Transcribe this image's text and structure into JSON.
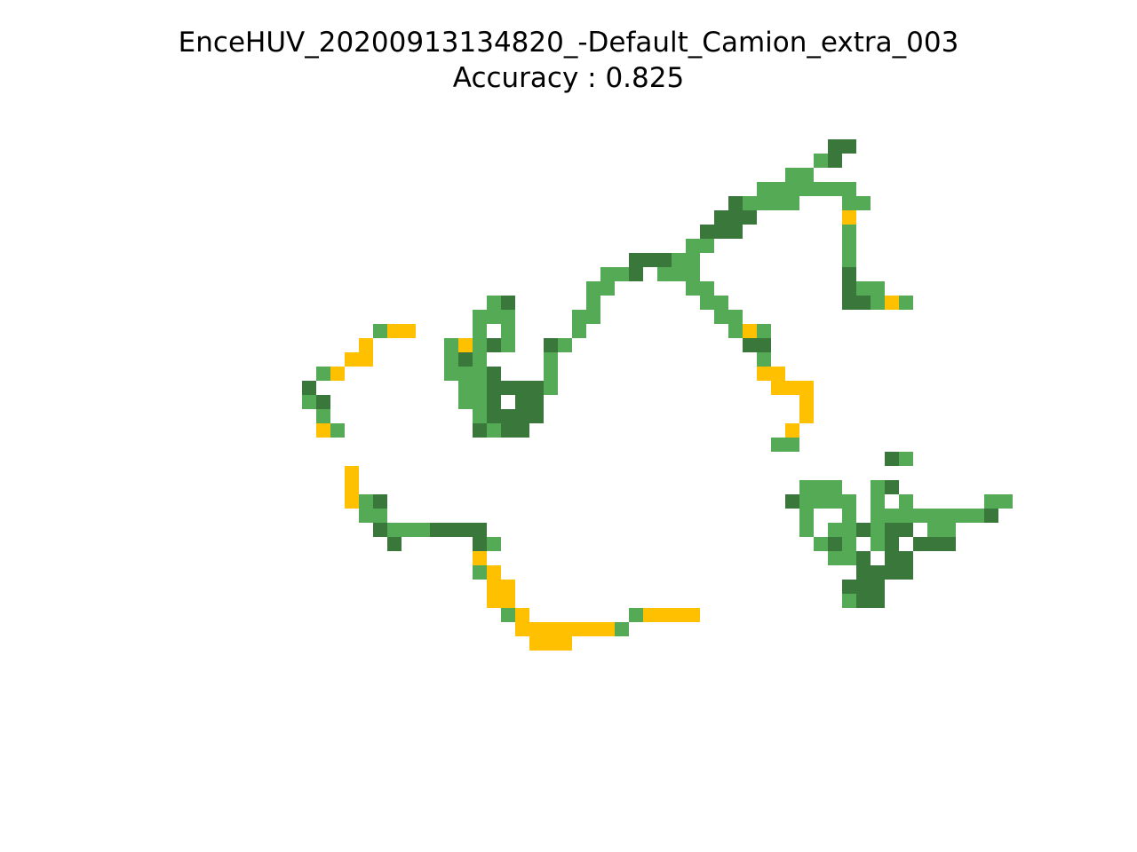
{
  "figure": {
    "title": "EnceHUV_20200913134820_-Default_Camion_extra_003",
    "subtitle": "Accuracy : 0.825"
  },
  "colors": {
    "light_green": "#55ab55",
    "dark_green": "#3a773a",
    "yellow": "#ffc000",
    "background": "#ffffff"
  },
  "grid": {
    "legend": {
      "G": "light_green",
      "D": "dark_green",
      "Y": "yellow"
    },
    "rows": [
      "...........................................DD.......",
      "..........................................GD........",
      "........................................GG..........",
      "......................................GGGGGGG.......",
      "....................................DGGGG...GG......",
      "...................................DDD......Y.......",
      "..................................DDD.......G.......",
      ".................................GG.........G.......",
      ".............................DDDGG..........G.......",
      "...........................GGD.GGG..........D.......",
      "..........................GG.....GG.........DGG.....",
      "...................GD.....G.......GG........DDGYG...",
      "..................GGG....GG........GG...............",
      "...........GYY....G.G....G..........GYG.............",
      "..........Y.....GYGDG..DG............DD.............",
      ".........YY.....GDG....G..............G.............",
      ".......GY.......GGGD...G..............YY............",
      "......D..........GGDDDDG...............YYY..........",
      "......GD.........GGD.DD..................Y..........",
      ".......G..........GDDDD..................Y..........",
      ".......YG.........DGDD..................Y...........",
      ".......................................GG...........",
      "...............................................DG...",
      ".........Y............................................",
      ".........Y...............................GGG..GD.....",
      ".........YGD............................DGGGG.G.G.....GG.",
      "..........GG.............................G..G.GGGGGGGGD.",
      "...........DGGGDDDD......................G.GGDGDD.GG..",
      "............D.....DG......................GDG.GD.DDD...",
      "..................Y........................GGD.DD......",
      "..................GY.........................DDDD......",
      "...................YY.......................DDD........",
      "...................YY.......................GDD........",
      "....................GY.......GYYYY.................",
      ".....................YYYYYYYG..........................",
      "......................YYY..........................."
    ]
  }
}
